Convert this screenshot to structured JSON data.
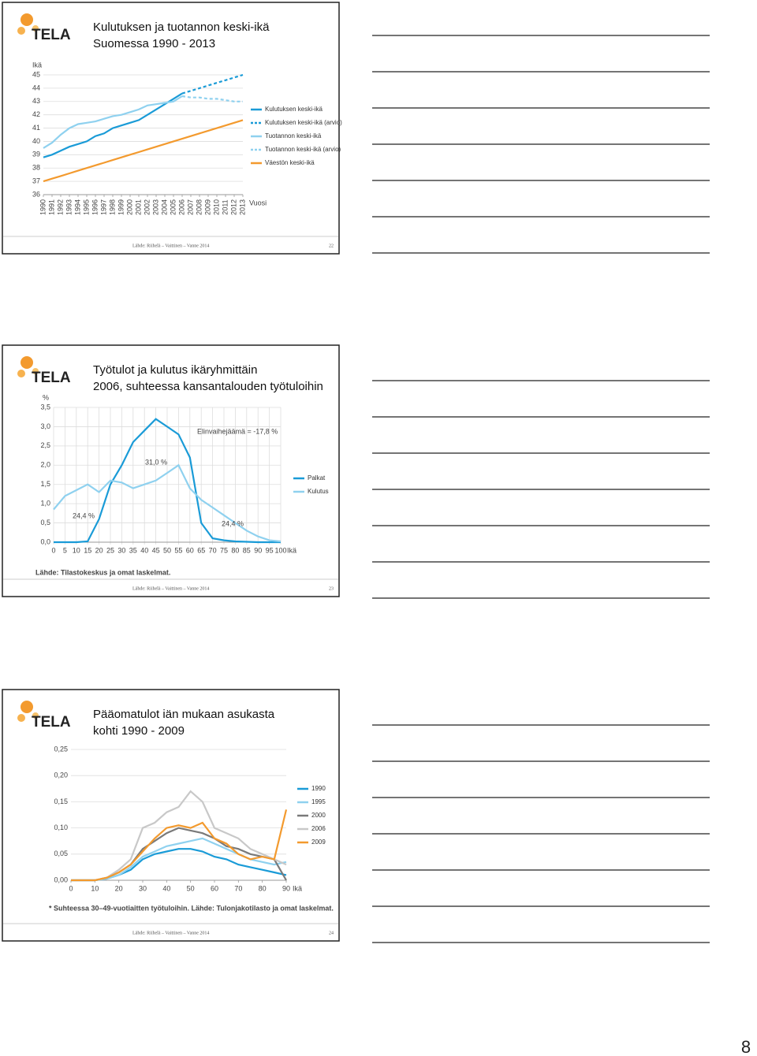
{
  "slides": [
    {
      "logo": "TELA",
      "title": [
        "Kulutuksen ja tuotannon keski-ikä",
        "Suomessa 1990 - 2013"
      ],
      "footer": "Lähde: Riihelä – Vaittinen – Vanne 2014",
      "number": "22",
      "chart": {
        "type": "line",
        "y_label": "Ikä",
        "x_label": "Vuosi",
        "grid": true,
        "x": [
          1990,
          1991,
          1992,
          1993,
          1994,
          1995,
          1996,
          1997,
          1998,
          1999,
          2000,
          2001,
          2002,
          2003,
          2004,
          2005,
          2006,
          2007,
          2008,
          2009,
          2010,
          2011,
          2012,
          2013
        ],
        "xlim": [
          1990,
          2013
        ],
        "xticks": [
          1990,
          1991,
          1992,
          1993,
          1994,
          1995,
          1996,
          1997,
          1998,
          1999,
          2000,
          2001,
          2002,
          2003,
          2004,
          2005,
          2006,
          2007,
          2008,
          2009,
          2010,
          2011,
          2012,
          2013
        ],
        "ylim": [
          36,
          45
        ],
        "yticks": [
          45,
          44,
          43,
          42,
          41,
          40,
          39,
          38,
          37,
          36
        ],
        "series": [
          {
            "name": "Kulutuksen keski-ikä",
            "color": "#1a9bd7",
            "dash": false,
            "values": [
              38.8,
              39.0,
              39.3,
              39.6,
              39.8,
              40.0,
              40.4,
              40.6,
              41.0,
              41.2,
              41.4,
              41.6,
              42.0,
              42.4,
              42.8,
              43.2,
              43.6,
              null,
              null,
              null,
              null,
              null,
              null,
              null
            ]
          },
          {
            "name": "Kulutuksen keski-ikä (arvio)",
            "color": "#1a9bd7",
            "dash": true,
            "values": [
              null,
              null,
              null,
              null,
              null,
              null,
              null,
              null,
              null,
              null,
              null,
              null,
              null,
              null,
              null,
              null,
              43.6,
              43.8,
              44.0,
              44.2,
              44.4,
              44.6,
              44.8,
              45.0
            ]
          },
          {
            "name": "Tuotannon keski-ikä",
            "color": "#8fd1ef",
            "dash": false,
            "values": [
              39.5,
              39.9,
              40.5,
              41.0,
              41.3,
              41.4,
              41.5,
              41.7,
              41.9,
              42.0,
              42.2,
              42.4,
              42.7,
              42.8,
              42.9,
              43.0,
              43.4,
              null,
              null,
              null,
              null,
              null,
              null,
              null
            ]
          },
          {
            "name": "Tuotannon keski-ikä (arvio)",
            "color": "#8fd1ef",
            "dash": true,
            "values": [
              null,
              null,
              null,
              null,
              null,
              null,
              null,
              null,
              null,
              null,
              null,
              null,
              null,
              null,
              null,
              null,
              43.4,
              43.3,
              43.3,
              43.2,
              43.2,
              43.1,
              43.0,
              43.0
            ]
          },
          {
            "name": "Väestön keski-ikä",
            "color": "#f39a2e",
            "dash": false,
            "values": [
              37.0,
              37.2,
              37.4,
              37.6,
              37.8,
              38.0,
              38.2,
              38.4,
              38.6,
              38.8,
              39.0,
              39.2,
              39.4,
              39.6,
              39.8,
              40.0,
              40.2,
              40.4,
              40.6,
              40.8,
              41.0,
              41.2,
              41.4,
              41.6
            ]
          }
        ]
      }
    },
    {
      "logo": "TELA",
      "title": [
        "Työtulot ja kulutus ikäryhmittäin",
        "2006, suhteessa kansantalouden työtuloihin"
      ],
      "footer": "Lähde: Riihelä – Vaittinen – Vanne 2014",
      "number": "23",
      "chart": {
        "type": "line",
        "y_label": "%",
        "x_label": "Ikä",
        "grid": true,
        "xgrid": true,
        "source": "Lähde: Tilastokeskus ja omat laskelmat.",
        "annotations": [
          "Elinvaihejäämä = -17,8 %",
          "31,0 %",
          "24,4 %",
          "24,4 %"
        ],
        "x": [
          0,
          5,
          10,
          15,
          20,
          25,
          30,
          35,
          40,
          45,
          50,
          55,
          60,
          65,
          70,
          75,
          80,
          85,
          90,
          95,
          100
        ],
        "xlim": [
          0,
          100
        ],
        "xticks": [
          0,
          5,
          10,
          15,
          20,
          25,
          30,
          35,
          40,
          45,
          50,
          55,
          60,
          65,
          70,
          75,
          80,
          85,
          90,
          95,
          100
        ],
        "ylim": [
          0,
          3.5
        ],
        "yticks": [
          {
            "value": 3.5,
            "label": "3,5"
          },
          {
            "value": 3.0,
            "label": "3,0"
          },
          {
            "value": 2.5,
            "label": "2,5"
          },
          {
            "value": 2.0,
            "label": "2,0"
          },
          {
            "value": 1.5,
            "label": "1,5"
          },
          {
            "value": 1.0,
            "label": "1,0"
          },
          {
            "value": 0.5,
            "label": "0,5"
          },
          {
            "value": 0,
            "label": "0,0"
          }
        ],
        "series": [
          {
            "name": "Palkat",
            "color": "#1a9bd7",
            "dash": false,
            "values": [
              0,
              0,
              0,
              0.02,
              0.6,
              1.5,
              2.0,
              2.6,
              2.9,
              3.2,
              3.0,
              2.8,
              2.2,
              0.5,
              0.1,
              0.05,
              0.02,
              0.01,
              0,
              0,
              0
            ]
          },
          {
            "name": "Kulutus",
            "color": "#8fd1ef",
            "dash": false,
            "values": [
              0.85,
              1.2,
              1.35,
              1.5,
              1.3,
              1.6,
              1.55,
              1.4,
              1.5,
              1.6,
              1.8,
              2.0,
              1.4,
              1.1,
              0.9,
              0.7,
              0.5,
              0.3,
              0.15,
              0.05,
              0.02
            ]
          }
        ]
      }
    },
    {
      "logo": "TELA",
      "title": [
        "Pääomatulot iän mukaan asukasta",
        "kohti 1990 - 2009"
      ],
      "footer": "Lähde: Riihelä – Vaittinen – Vanne 2014",
      "number": "24",
      "chart": {
        "type": "line",
        "x_label": "Ikä",
        "grid": true,
        "source": "* Suhteessa 30–49-vuotiaitten työtuloihin. Lähde: Tulonjakotilasto ja omat laskelmat.",
        "x": [
          0,
          5,
          10,
          15,
          20,
          25,
          30,
          35,
          40,
          45,
          50,
          55,
          60,
          65,
          70,
          75,
          80,
          85,
          90
        ],
        "xlim": [
          0,
          90
        ],
        "xticks": [
          0,
          10,
          20,
          30,
          40,
          50,
          60,
          70,
          80,
          90
        ],
        "ylim": [
          0,
          0.25
        ],
        "yticks": [
          {
            "value": 0.25,
            "label": "0,25"
          },
          {
            "value": 0.2,
            "label": "0,20"
          },
          {
            "value": 0.15,
            "label": "0,15"
          },
          {
            "value": 0.1,
            "label": "0,10"
          },
          {
            "value": 0.05,
            "label": "0,05"
          },
          {
            "value": 0,
            "label": "0,00"
          }
        ],
        "series": [
          {
            "name": "1990",
            "color": "#1a9bd7",
            "dash": false,
            "values": [
              0,
              0,
              0,
              0.003,
              0.01,
              0.02,
              0.04,
              0.05,
              0.055,
              0.06,
              0.06,
              0.055,
              0.045,
              0.04,
              0.03,
              0.025,
              0.02,
              0.015,
              0.01
            ]
          },
          {
            "name": "1995",
            "color": "#8fd1ef",
            "dash": false,
            "values": [
              0,
              0,
              0,
              0.003,
              0.01,
              0.025,
              0.045,
              0.055,
              0.065,
              0.07,
              0.075,
              0.08,
              0.07,
              0.06,
              0.05,
              0.04,
              0.035,
              0.03,
              0.035
            ]
          },
          {
            "name": "2000",
            "color": "#7a7a7a",
            "dash": false,
            "values": [
              0,
              0,
              0,
              0.005,
              0.015,
              0.03,
              0.06,
              0.075,
              0.09,
              0.1,
              0.095,
              0.09,
              0.08,
              0.065,
              0.06,
              0.05,
              0.045,
              0.04,
              0
            ]
          },
          {
            "name": "2006",
            "color": "#c8c8c8",
            "dash": false,
            "values": [
              0,
              0,
              0,
              0.005,
              0.02,
              0.04,
              0.1,
              0.11,
              0.13,
              0.14,
              0.17,
              0.15,
              0.1,
              0.09,
              0.08,
              0.06,
              0.05,
              0.04,
              0.03
            ]
          },
          {
            "name": "2009",
            "color": "#f39a2e",
            "dash": false,
            "values": [
              0,
              0,
              0,
              0.005,
              0.015,
              0.03,
              0.055,
              0.08,
              0.1,
              0.105,
              0.1,
              0.11,
              0.08,
              0.07,
              0.05,
              0.04,
              0.045,
              0.04,
              0.135
            ]
          }
        ]
      }
    }
  ],
  "page_number": "8"
}
